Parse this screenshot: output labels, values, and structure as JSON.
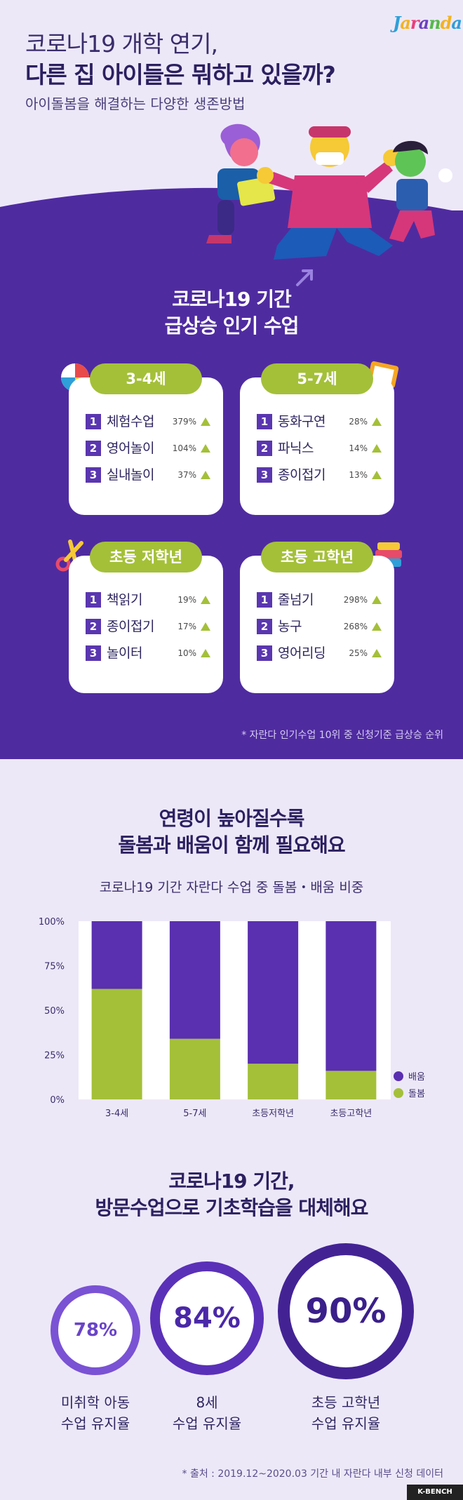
{
  "brand": {
    "logo": "Jaranda"
  },
  "hero": {
    "title_line1": "코로나19 개학 연기,",
    "title_line2": "다른 집 아이들은 뭐하고 있을까?",
    "subtitle": "아이돌봄을 해결하는 다양한 생존방법"
  },
  "section1": {
    "title_line1": "코로나19 기간",
    "title_line2": "급상승 인기 수업",
    "groups": [
      {
        "label": "3-4세",
        "items": [
          {
            "rank": "1",
            "name": "체험수업",
            "pct": "379%"
          },
          {
            "rank": "2",
            "name": "영어놀이",
            "pct": "104%"
          },
          {
            "rank": "3",
            "name": "실내놀이",
            "pct": "37%"
          }
        ]
      },
      {
        "label": "5-7세",
        "items": [
          {
            "rank": "1",
            "name": "동화구연",
            "pct": "28%"
          },
          {
            "rank": "2",
            "name": "파닉스",
            "pct": "14%"
          },
          {
            "rank": "3",
            "name": "종이접기",
            "pct": "13%"
          }
        ]
      },
      {
        "label": "초등 저학년",
        "items": [
          {
            "rank": "1",
            "name": "책읽기",
            "pct": "19%"
          },
          {
            "rank": "2",
            "name": "종이접기",
            "pct": "17%"
          },
          {
            "rank": "3",
            "name": "놀이터",
            "pct": "10%"
          }
        ]
      },
      {
        "label": "초등 고학년",
        "items": [
          {
            "rank": "1",
            "name": "줄넘기",
            "pct": "298%"
          },
          {
            "rank": "2",
            "name": "농구",
            "pct": "268%"
          },
          {
            "rank": "3",
            "name": "영어리딩",
            "pct": "25%"
          }
        ]
      }
    ],
    "note": "* 자란다 인기수업 10위 중 신청기준 급상승 순위"
  },
  "section2": {
    "title_line1": "연령이 높아질수록",
    "title_line2": "돌봄과 배움이 함께 필요해요",
    "chart_title": "코로나19 기간 자란다 수업 중 돌봄・배움 비중"
  },
  "chart_data": {
    "type": "bar",
    "stacked": true,
    "categories": [
      "3-4세",
      "5-7세",
      "초등저학년",
      "초등고학년"
    ],
    "series": [
      {
        "name": "돌봄",
        "color": "#a4c039",
        "values": [
          62,
          34,
          20,
          16
        ]
      },
      {
        "name": "배움",
        "color": "#5a2fb0",
        "values": [
          38,
          66,
          80,
          84
        ]
      }
    ],
    "ylim": [
      0,
      100
    ],
    "yticks": [
      "0%",
      "25%",
      "50%",
      "75%",
      "100%"
    ],
    "legend": "right",
    "grid": false
  },
  "section3": {
    "title_line1": "코로나19 기간,",
    "title_line2": "방문수업으로 기초학습을 대체해요",
    "stats": [
      {
        "value": "78%",
        "label_line1": "미취학 아동",
        "label_line2": "수업 유지율",
        "ring_color": "#7a52d4"
      },
      {
        "value": "84%",
        "label_line1": "8세",
        "label_line2": "수업 유지율",
        "ring_color": "#5a30b8"
      },
      {
        "value": "90%",
        "label_line1": "초등 고학년",
        "label_line2": "수업 유지율",
        "ring_color": "#432394"
      }
    ],
    "note": "* 출처 : 2019.12~2020.03 기간 내 자란다 내부 신청 데이터"
  },
  "footer": {
    "badge": "K-BENCH"
  },
  "colors": {
    "purple": "#4f2ba0",
    "green": "#a4c039",
    "background": "#ede8f8"
  }
}
